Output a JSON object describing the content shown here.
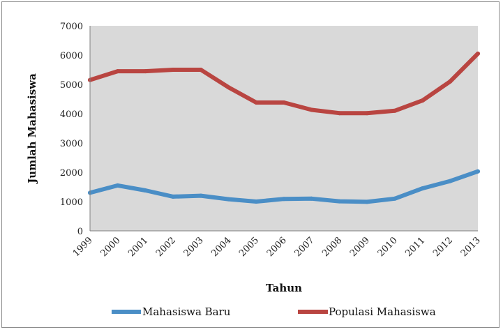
{
  "chart_data": {
    "type": "line",
    "title": "",
    "xlabel": "Tahun",
    "ylabel": "Jumlah Mahasiswa",
    "x": [
      "1999",
      "2000",
      "2001",
      "2002",
      "2003",
      "2004",
      "2005",
      "2006",
      "2007",
      "2008",
      "2009",
      "2010",
      "2011",
      "2012",
      "2013"
    ],
    "ylim": [
      0,
      7000
    ],
    "yticks": [
      0,
      1000,
      2000,
      3000,
      4000,
      5000,
      6000,
      7000
    ],
    "grid": false,
    "plot_background": "#d9d9d9",
    "legend_position": "bottom",
    "series": [
      {
        "name": "Mahasiswa Baru",
        "color": "#4a8ec6",
        "values": [
          1300,
          1550,
          1380,
          1170,
          1200,
          1080,
          1000,
          1090,
          1100,
          1010,
          990,
          1100,
          1450,
          1700,
          2030
        ]
      },
      {
        "name": "Populasi Mahasiswa",
        "color": "#b94541",
        "values": [
          5150,
          5450,
          5450,
          5500,
          5500,
          4900,
          4380,
          4380,
          4130,
          4020,
          4020,
          4100,
          4450,
          5100,
          6050
        ]
      }
    ]
  }
}
